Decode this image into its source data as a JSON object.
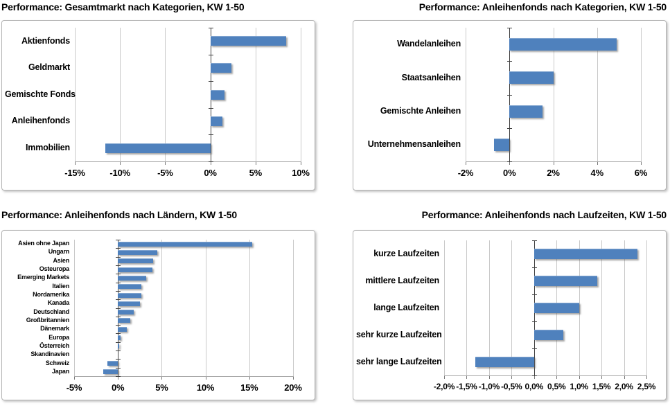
{
  "styles": {
    "bar_color": "#4F81BD",
    "grid_color": "#C9C9C9",
    "zero_axis_color": "#404040",
    "axis_line_color": "#A8A8A8",
    "text_color": "#000000",
    "panel_border_color": "#B3B3B3"
  },
  "chart_data": [
    {
      "type": "bar",
      "orientation": "horizontal",
      "title": "Performance: Gesamtmarkt nach Kategorien, KW 1-50",
      "categories": [
        "Aktienfonds",
        "Geldmarkt",
        "Gemischte Fonds",
        "Anleihenfonds",
        "Immobilien"
      ],
      "values": [
        8.4,
        2.3,
        1.6,
        1.3,
        -11.6
      ],
      "unit": "%",
      "xlim": [
        -15,
        10
      ],
      "xticks": [
        -15,
        -10,
        -5,
        0,
        5,
        10
      ],
      "xtick_labels": [
        "-15%",
        "-10%",
        "-5%",
        "0%",
        "5%",
        "10%"
      ],
      "grid": true,
      "legend": false
    },
    {
      "type": "bar",
      "orientation": "horizontal",
      "title": "Performance: Anleihenfonds nach Kategorien, KW 1-50",
      "categories": [
        "Wandelanleihen",
        "Staatsanleihen",
        "Gemischte Anleihen",
        "Unternehmensanleihen"
      ],
      "values": [
        4.9,
        2.0,
        1.5,
        -0.7
      ],
      "unit": "%",
      "xlim": [
        -2,
        6
      ],
      "xticks": [
        -2,
        0,
        2,
        4,
        6
      ],
      "xtick_labels": [
        "-2%",
        "0%",
        "2%",
        "4%",
        "6%"
      ],
      "grid": true,
      "legend": false
    },
    {
      "type": "bar",
      "orientation": "horizontal",
      "title": "Performance: Anleihenfonds nach Ländern, KW 1-50",
      "categories": [
        "Asien ohne Japan",
        "Ungarn",
        "Asien",
        "Osteuropa",
        "Emerging Markets",
        "Italien",
        "Nordamerika",
        "Kanada",
        "Deutschland",
        "Großbritannien",
        "Dänemark",
        "Europa",
        "Österreich",
        "Skandinavien",
        "Schweiz",
        "Japan"
      ],
      "values": [
        15.3,
        4.5,
        4.0,
        3.95,
        3.2,
        2.7,
        2.65,
        2.5,
        1.8,
        1.4,
        1.0,
        0.3,
        0.15,
        0,
        -1.2,
        -1.7
      ],
      "unit": "%",
      "xlim": [
        -5,
        20
      ],
      "xticks": [
        -5,
        0,
        5,
        10,
        15,
        20
      ],
      "xtick_labels": [
        "-5%",
        "0%",
        "5%",
        "10%",
        "15%",
        "20%"
      ],
      "grid": true,
      "legend": false
    },
    {
      "type": "bar",
      "orientation": "horizontal",
      "title": "Performance: Anleihenfonds nach Laufzeiten, KW 1-50",
      "categories": [
        "kurze Laufzeiten",
        "mittlere Laufzeiten",
        "lange Laufzeiten",
        "sehr kurze Laufzeiten",
        "sehr lange Laufzeiten"
      ],
      "values": [
        2.3,
        1.4,
        1.0,
        0.65,
        -1.3
      ],
      "unit": "%",
      "xlim": [
        -2.0,
        2.5
      ],
      "xticks": [
        -2.0,
        -1.5,
        -1.0,
        -0.5,
        0.0,
        0.5,
        1.0,
        1.5,
        2.0,
        2.5
      ],
      "xtick_labels": [
        "-2,0%",
        "-1,5%",
        "-1,0%",
        "-0,5%",
        "0,0%",
        "0,5%",
        "1,0%",
        "1,5%",
        "2,0%",
        "2,5%"
      ],
      "grid": true,
      "legend": false
    }
  ]
}
